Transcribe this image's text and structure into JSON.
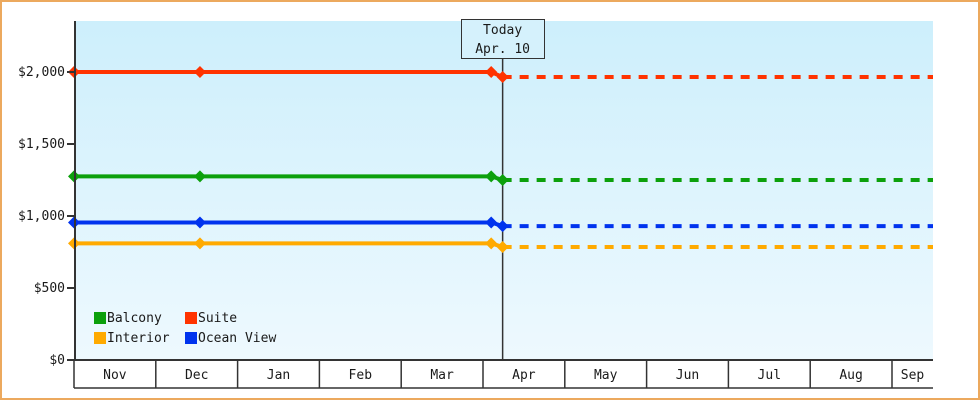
{
  "colors": {
    "frame_border": "#eca95e",
    "plot_bg_top": "#cdeffc",
    "plot_bg_bottom": "#eef9fe",
    "axis": "#333333",
    "text": "#1a1a1a",
    "today_box_bg": "#d5f1fc"
  },
  "chart_data": {
    "type": "line",
    "title": "",
    "currency": "USD",
    "today": {
      "line1": "Today",
      "line2": "Apr. 10",
      "month_position": 5.24
    },
    "x_axis": {
      "months": [
        "Nov",
        "Dec",
        "Jan",
        "Feb",
        "Mar",
        "Apr",
        "May",
        "Jun",
        "Jul",
        "Aug",
        "Sep"
      ]
    },
    "y_axis": {
      "tick_labels": [
        "$0",
        "$500",
        "$1,000",
        "$1,500",
        "$2,000"
      ],
      "tick_values": [
        0,
        500,
        1000,
        1500,
        2000
      ],
      "range": [
        0,
        2100
      ],
      "grid": false
    },
    "marker_months": [
      0,
      1.54,
      5.1
    ],
    "series": [
      {
        "name": "Suite",
        "color": "#ff3300",
        "price_before_today": 2000,
        "price_after_today": 1965
      },
      {
        "name": "Balcony",
        "color": "#0ca00c",
        "price_before_today": 1275,
        "price_after_today": 1250
      },
      {
        "name": "Ocean View",
        "color": "#0033ee",
        "price_before_today": 955,
        "price_after_today": 930
      },
      {
        "name": "Interior",
        "color": "#ffaa00",
        "price_before_today": 810,
        "price_after_today": 785
      }
    ],
    "legend": {
      "rows": [
        [
          "Balcony",
          "Suite"
        ],
        [
          "Interior",
          "Ocean View"
        ]
      ],
      "position": "bottom-left"
    },
    "style": {
      "solid_before_today": true,
      "dashed_after_today": true,
      "marker": "diamond"
    }
  }
}
